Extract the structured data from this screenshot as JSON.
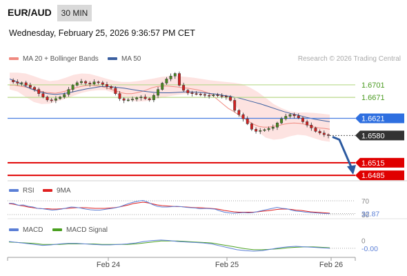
{
  "header": {
    "pair": "EUR/AUD",
    "timeframe": "30 MIN",
    "datetime": "Wednesday, February 25, 2026 9:36:57 PM CET"
  },
  "legend": {
    "ma20_label": "MA 20 + Bollinger Bands",
    "ma50_label": "MA 50",
    "credit": "Research © 2026 Trading Central",
    "rsi_label": "RSI",
    "rsi_ma_label": "9MA",
    "macd_label": "MACD",
    "macd_signal_label": "MACD Signal"
  },
  "colors": {
    "ma20": "#f08a80",
    "bollinger_fill": "#fde3e1",
    "ma50": "#3b5fa0",
    "resistance": "#b8d98a",
    "support": "#e00000",
    "current_line": "#4a7ee0",
    "current_label": "#2e6fe0",
    "last_price_label": "#333333",
    "candle_up": "#4a8a1f",
    "candle_down": "#d32020",
    "rsi": "#5b7fd6",
    "rsi_ma": "#e02020",
    "macd": "#5b7fd6",
    "macd_signal": "#4aa020",
    "forecast_arrow": "#2c5aa0"
  },
  "chart_data": [
    {
      "type": "candlestick",
      "title": "EUR/AUD 30 MIN",
      "x_categories": [
        "Feb 24",
        "Feb 25",
        "Feb 26"
      ],
      "y_range": [
        1.6472,
        1.6747
      ],
      "price_levels": [
        {
          "label": "1.6701",
          "value": 1.6701,
          "kind": "resistance"
        },
        {
          "label": "1.6671",
          "value": 1.6671,
          "kind": "resistance"
        },
        {
          "label": "1.6621",
          "value": 1.6621,
          "kind": "pivot"
        },
        {
          "label": "1.6580",
          "value": 1.658,
          "kind": "last-price"
        },
        {
          "label": "1.6515",
          "value": 1.6515,
          "kind": "support"
        },
        {
          "label": "1.6485",
          "value": 1.6485,
          "kind": "support"
        }
      ],
      "close_series": [
        1.6712,
        1.6708,
        1.6705,
        1.6706,
        1.67,
        1.6695,
        1.669,
        1.668,
        1.6672,
        1.6665,
        1.6664,
        1.6668,
        1.6672,
        1.6678,
        1.669,
        1.67,
        1.6706,
        1.6709,
        1.6705,
        1.6703,
        1.6708,
        1.6706,
        1.6702,
        1.6697,
        1.6693,
        1.668,
        1.6668,
        1.6664,
        1.6665,
        1.6667,
        1.667,
        1.6672,
        1.6668,
        1.6665,
        1.6676,
        1.669,
        1.6705,
        1.6715,
        1.6722,
        1.6728,
        1.67,
        1.6688,
        1.6682,
        1.668,
        1.6679,
        1.6678,
        1.6676,
        1.6675,
        1.6677,
        1.6675,
        1.6674,
        1.6672,
        1.6664,
        1.664,
        1.663,
        1.662,
        1.6608,
        1.6595,
        1.659,
        1.6592,
        1.6594,
        1.6597,
        1.66,
        1.661,
        1.662,
        1.6626,
        1.663,
        1.6627,
        1.6622,
        1.6613,
        1.6605,
        1.6598,
        1.659,
        1.6586,
        1.6582,
        1.658
      ],
      "ma20": [
        1.67,
        1.67,
        1.6698,
        1.6696,
        1.6693,
        1.669,
        1.6686,
        1.6683,
        1.6682,
        1.6681,
        1.6683,
        1.6686,
        1.669,
        1.6694,
        1.6697,
        1.6699,
        1.67,
        1.6699,
        1.6697,
        1.6694,
        1.669,
        1.6686,
        1.6682,
        1.668,
        1.668,
        1.6682,
        1.6685,
        1.6689,
        1.6694,
        1.6697,
        1.6698,
        1.6698,
        1.6697,
        1.6696,
        1.6694,
        1.6693,
        1.6691,
        1.6689,
        1.6686,
        1.6682,
        1.6675,
        1.6665,
        1.6655,
        1.6645,
        1.6638,
        1.663,
        1.6622,
        1.6614,
        1.6607,
        1.6602,
        1.66,
        1.66,
        1.6602,
        1.6604,
        1.6607,
        1.6609,
        1.661,
        1.6609,
        1.6607,
        1.6604,
        1.66,
        1.6598,
        1.6597,
        1.6595
      ],
      "ma50": [
        1.6715,
        1.6708,
        1.6698,
        1.669,
        1.6684,
        1.668,
        1.6678,
        1.668,
        1.6683,
        1.6687,
        1.6691,
        1.6694,
        1.6697,
        1.6697,
        1.6695,
        1.6693,
        1.669,
        1.6687,
        1.6685,
        1.6683,
        1.6682,
        1.6682,
        1.6683,
        1.6684,
        1.6684,
        1.6683,
        1.6681,
        1.6679,
        1.6676,
        1.6673,
        1.667,
        1.6665,
        1.666,
        1.6655,
        1.6649,
        1.6643,
        1.6637,
        1.6632,
        1.6628,
        1.6623,
        1.6619,
        1.6616,
        1.6613
      ],
      "bollinger_upper": [
        1.673,
        1.673,
        1.6728,
        1.6722,
        1.6715,
        1.671,
        1.6712,
        1.6718,
        1.6725,
        1.6728,
        1.6727,
        1.6722,
        1.6716,
        1.6711,
        1.6708,
        1.6708,
        1.671,
        1.6713,
        1.6716,
        1.672,
        1.6722,
        1.6722,
        1.672,
        1.6718,
        1.6715,
        1.6712,
        1.671,
        1.6708,
        1.6706,
        1.6703,
        1.6695,
        1.6684,
        1.667,
        1.6655,
        1.6645,
        1.6638,
        1.6635,
        1.6635,
        1.6634,
        1.6632,
        1.663
      ],
      "bollinger_lower": [
        1.669,
        1.6685,
        1.6672,
        1.666,
        1.6655,
        1.6656,
        1.6662,
        1.6668,
        1.6675,
        1.6682,
        1.6686,
        1.6688,
        1.6688,
        1.6682,
        1.6672,
        1.6664,
        1.6661,
        1.6662,
        1.6666,
        1.667,
        1.6674,
        1.6677,
        1.6679,
        1.668,
        1.668,
        1.6679,
        1.6676,
        1.667,
        1.6655,
        1.6635,
        1.661,
        1.659,
        1.6575,
        1.657,
        1.6572,
        1.6578,
        1.6582,
        1.658,
        1.6574,
        1.6568,
        1.6565
      ]
    },
    {
      "type": "line",
      "title": "RSI",
      "y_ticks": [
        {
          "label": "70",
          "value": 70
        },
        {
          "label": "30",
          "value": 30
        }
      ],
      "last_value_label": "32.87",
      "y_range": [
        20,
        80
      ],
      "series": [
        {
          "name": "RSI",
          "values": [
            63,
            62,
            57,
            58,
            54,
            52,
            48,
            47,
            45,
            43,
            44,
            46,
            49,
            52,
            51,
            49,
            46,
            44,
            43,
            43,
            45,
            47,
            49,
            52,
            57,
            62,
            66,
            69,
            71,
            66,
            59,
            54,
            52,
            52,
            53,
            54,
            53,
            51,
            50,
            49,
            47,
            48,
            47,
            46,
            41,
            37,
            35,
            34,
            35,
            36,
            35,
            36,
            39,
            42,
            45,
            48,
            51,
            48,
            47,
            43,
            40,
            39,
            37,
            36,
            35,
            34,
            33,
            32.87
          ]
        },
        {
          "name": "9MA",
          "values": [
            62,
            60,
            57,
            55,
            52,
            50,
            48,
            47,
            47,
            46,
            46,
            47,
            48,
            49,
            50,
            50,
            50,
            49,
            48,
            48,
            48,
            49,
            50,
            52,
            55,
            58,
            62,
            64,
            66,
            64,
            61,
            58,
            56,
            55,
            54,
            53,
            53,
            52,
            51,
            50,
            50,
            49,
            48,
            47,
            45,
            42,
            40,
            38,
            37,
            37,
            37,
            37,
            38,
            40,
            41,
            43,
            45,
            46,
            46,
            45,
            43,
            42,
            40,
            38,
            37,
            36,
            35,
            34
          ]
        }
      ]
    },
    {
      "type": "line",
      "title": "MACD",
      "y_ticks": [
        {
          "label": "0",
          "value": 0
        }
      ],
      "last_value_label": "-0.00",
      "y_range": [
        -0.0025,
        0.0015
      ],
      "series": [
        {
          "name": "MACD",
          "values": [
            0.0005,
            0.0003,
            0.0001,
            -0.0001,
            -0.0003,
            -0.0002,
            0.0,
            0.0001,
            0.0001,
            0.0,
            -0.0001,
            -0.0002,
            -0.0002,
            -0.0001,
            0.0,
            0.0002,
            0.0005,
            0.0007,
            0.0008,
            0.0007,
            0.0005,
            0.0004,
            0.0003,
            0.0002,
            0.0,
            -0.0004,
            -0.0008,
            -0.0012,
            -0.0014,
            -0.0015,
            -0.0014,
            -0.0011,
            -0.0008,
            -0.0006,
            -0.0005,
            -0.0006,
            -0.0007,
            -0.0008,
            -0.0009
          ]
        },
        {
          "name": "MACD Signal",
          "values": [
            0.0004,
            0.0003,
            0.0002,
            0.0001,
            -0.0001,
            -0.0001,
            -0.0001,
            0.0,
            0.0,
            0.0,
            0.0,
            -0.0001,
            -0.0001,
            -0.0001,
            -0.0001,
            0.0,
            0.0002,
            0.0004,
            0.0006,
            0.0006,
            0.0006,
            0.0005,
            0.0004,
            0.0003,
            0.0002,
            -0.0001,
            -0.0004,
            -0.0007,
            -0.001,
            -0.0012,
            -0.0012,
            -0.0011,
            -0.001,
            -0.0008,
            -0.0007,
            -0.0006,
            -0.0006,
            -0.0007,
            -0.0008
          ]
        }
      ]
    }
  ]
}
